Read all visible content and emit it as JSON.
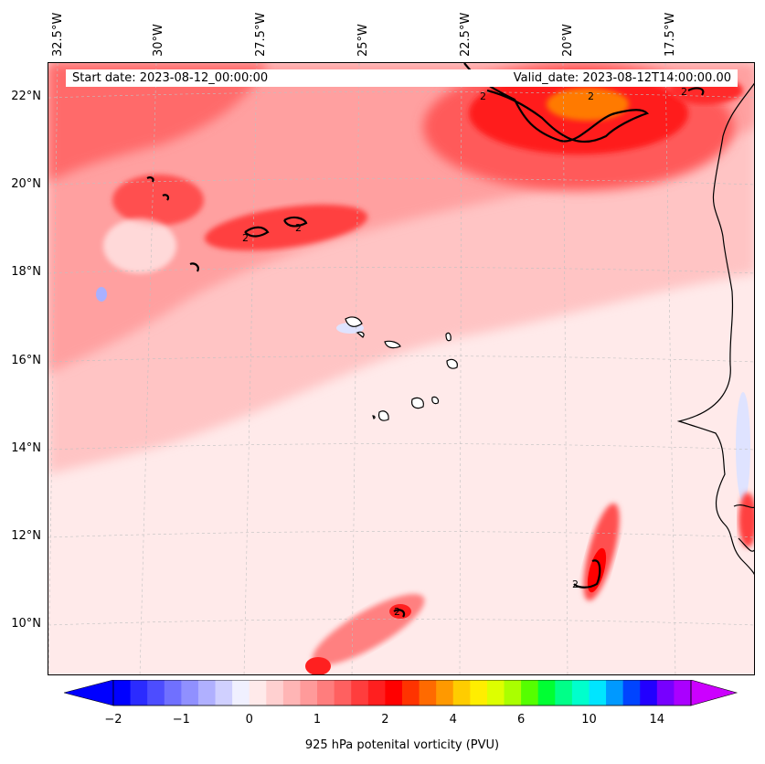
{
  "map": {
    "start_date": "Start date: 2023-08-12_00:00:00",
    "valid_date": "Valid_date: 2023-08-12T14:00:00.00",
    "lon_labels": [
      "32.5°W",
      "30°W",
      "27.5°W",
      "25°W",
      "22.5°W",
      "20°W",
      "17.5°W"
    ],
    "lat_labels": [
      "22°N",
      "20°N",
      "18°N",
      "16°N",
      "14°N",
      "12°N",
      "10°N"
    ],
    "contour_level_label": "2",
    "field_colors": {
      "background": "#ffeaea",
      "pale": "#ffd2d2",
      "light": "#ffb5b5",
      "medium": "#ff8c8c",
      "strong": "#ff4d4d",
      "intense": "#ff1a1a",
      "orange": "#ff8800",
      "blue_light": "#dfe3ff",
      "blue": "#b0b8ff"
    }
  },
  "colorbar": {
    "title": "925 hPa potenital vorticity (PVU)",
    "tick_labels": [
      "−2",
      "−1",
      "0",
      "1",
      "2",
      "4",
      "6",
      "10",
      "14"
    ],
    "colors": [
      "#0000ff",
      "#2b2bff",
      "#4d4dff",
      "#7070ff",
      "#9090ff",
      "#b0b0ff",
      "#d0d0ff",
      "#f0f0ff",
      "#ffeaea",
      "#ffd0d0",
      "#ffb5b5",
      "#ff9a9a",
      "#ff7d7d",
      "#ff6060",
      "#ff3d3d",
      "#ff1f1f",
      "#ff0000",
      "#ff3300",
      "#ff6a00",
      "#ff9900",
      "#ffcc00",
      "#ffee00",
      "#ddff00",
      "#aaff00",
      "#55ff00",
      "#00ff33",
      "#00ff88",
      "#00ffcc",
      "#00e5ff",
      "#0099ff",
      "#0044ff",
      "#2200ff",
      "#7700ff",
      "#aa00ff"
    ],
    "extend_min_color": "#0000ff",
    "extend_max_color": "#cc00ff"
  }
}
